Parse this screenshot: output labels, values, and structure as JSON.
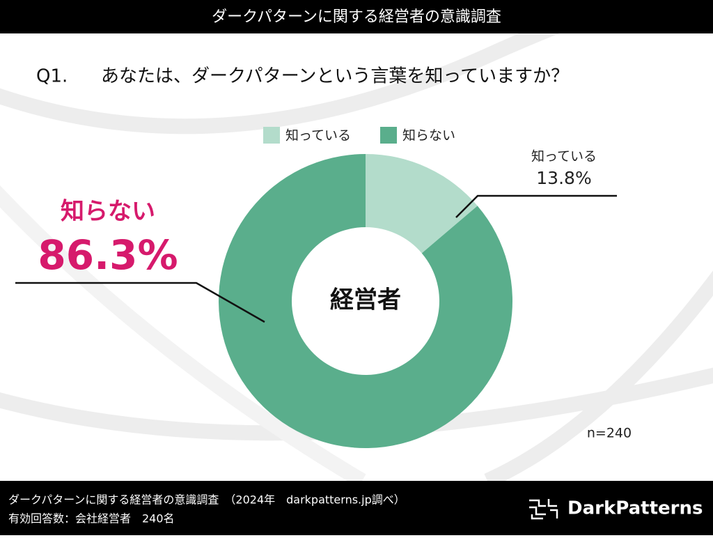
{
  "header": {
    "title": "ダークパターンに関する経営者の意識調査"
  },
  "chart_data": {
    "type": "donut",
    "question_number": "Q1.",
    "question": "あなたは、ダークパターンという言葉を知っていますか？",
    "categories": [
      "知っている",
      "知らない"
    ],
    "values": [
      13.8,
      86.3
    ],
    "value_labels": [
      "13.8%",
      "86.3%"
    ],
    "colors": [
      "#b3dccb",
      "#5aae8c"
    ],
    "center_label": "経営者",
    "sample_size": "n=240"
  },
  "footer": {
    "source": "ダークパターンに関する経営者の意識調査　（2024年　darkpatterns.jp調べ）",
    "respondents": "有効回答数：会社経営者　240名",
    "brand": "DarkPatterns"
  }
}
